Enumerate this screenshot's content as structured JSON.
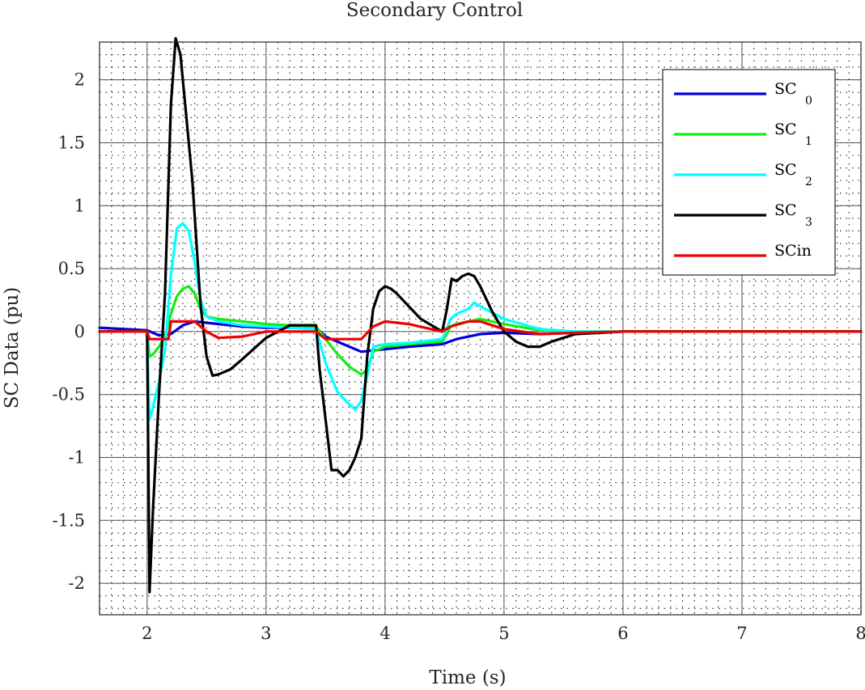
{
  "chart_data": {
    "type": "line",
    "title": "Secondary Control",
    "xlabel": "Time (s)",
    "ylabel": "SC Data (pu)",
    "xlim": [
      1.6,
      8.0
    ],
    "ylim": [
      -2.25,
      2.3
    ],
    "x_ticks": [
      2,
      3,
      4,
      5,
      6,
      7,
      8
    ],
    "x_tick_labels": [
      "2",
      "3",
      "4",
      "5",
      "6",
      "7",
      "8"
    ],
    "y_ticks": [
      -2,
      -1.5,
      -1,
      -0.5,
      0,
      0.5,
      1,
      1.5,
      2
    ],
    "y_tick_labels": [
      "-2",
      "-1.5",
      "-1",
      "-0.5",
      "0",
      "0.5",
      "1",
      "1.5",
      "2"
    ],
    "grid": "major solid, minor dotted",
    "legend_position": "top-right",
    "series": [
      {
        "name": "SC 0",
        "legend_base": "SC",
        "legend_sub": "0",
        "color": "#0000dd",
        "x": [
          1.6,
          2.0,
          2.1,
          2.2,
          2.3,
          2.4,
          2.5,
          2.6,
          2.8,
          3.0,
          3.2,
          3.42,
          3.5,
          3.7,
          3.8,
          4.0,
          4.2,
          4.48,
          4.6,
          4.8,
          5.0,
          5.3,
          5.6,
          6.0,
          7.0,
          8.0
        ],
        "y": [
          0.03,
          0.01,
          -0.03,
          -0.02,
          0.05,
          0.08,
          0.07,
          0.06,
          0.04,
          0.03,
          0.03,
          0.03,
          -0.04,
          -0.12,
          -0.16,
          -0.14,
          -0.12,
          -0.1,
          -0.06,
          -0.02,
          -0.01,
          -0.02,
          -0.01,
          0.0,
          0.0,
          0.0
        ]
      },
      {
        "name": "SC 1",
        "legend_base": "SC",
        "legend_sub": "1",
        "color": "#11ee11",
        "x": [
          1.6,
          2.0,
          2.02,
          2.05,
          2.1,
          2.15,
          2.2,
          2.25,
          2.3,
          2.35,
          2.4,
          2.45,
          2.5,
          2.6,
          2.8,
          3.0,
          3.2,
          3.42,
          3.5,
          3.6,
          3.7,
          3.8,
          3.85,
          3.9,
          4.0,
          4.2,
          4.48,
          4.52,
          4.55,
          4.6,
          4.7,
          4.8,
          5.0,
          5.3,
          5.6,
          6.0,
          7.0,
          8.0
        ],
        "y": [
          0.0,
          0.0,
          -0.2,
          -0.18,
          -0.12,
          -0.04,
          0.14,
          0.28,
          0.34,
          0.36,
          0.3,
          0.18,
          0.12,
          0.1,
          0.08,
          0.06,
          0.05,
          0.04,
          -0.06,
          -0.18,
          -0.28,
          -0.34,
          -0.3,
          -0.16,
          -0.12,
          -0.1,
          -0.08,
          -0.02,
          0.04,
          0.06,
          0.08,
          0.1,
          0.06,
          0.01,
          0.0,
          0.0,
          0.0,
          0.0
        ]
      },
      {
        "name": "SC 2",
        "legend_base": "SC",
        "legend_sub": "2",
        "color": "#00ffff",
        "x": [
          1.6,
          2.0,
          2.02,
          2.05,
          2.1,
          2.15,
          2.2,
          2.25,
          2.3,
          2.35,
          2.4,
          2.45,
          2.5,
          2.6,
          2.8,
          3.0,
          3.2,
          3.42,
          3.5,
          3.6,
          3.7,
          3.75,
          3.8,
          3.85,
          3.9,
          4.0,
          4.2,
          4.48,
          4.52,
          4.55,
          4.6,
          4.7,
          4.75,
          4.8,
          5.0,
          5.3,
          5.6,
          6.0,
          7.0,
          8.0
        ],
        "y": [
          0.0,
          0.0,
          -0.7,
          -0.6,
          -0.4,
          -0.15,
          0.45,
          0.82,
          0.86,
          0.8,
          0.55,
          0.25,
          0.12,
          0.08,
          0.05,
          0.04,
          0.03,
          0.02,
          -0.25,
          -0.48,
          -0.58,
          -0.62,
          -0.55,
          -0.35,
          -0.12,
          -0.1,
          -0.09,
          -0.06,
          0.02,
          0.1,
          0.14,
          0.18,
          0.23,
          0.2,
          0.1,
          0.02,
          0.0,
          0.0,
          0.0,
          0.0
        ]
      },
      {
        "name": "SC 3",
        "legend_base": "SC",
        "legend_sub": "3",
        "color": "#000000",
        "x": [
          1.6,
          2.0,
          2.01,
          2.02,
          2.05,
          2.1,
          2.15,
          2.2,
          2.24,
          2.28,
          2.32,
          2.38,
          2.45,
          2.5,
          2.55,
          2.6,
          2.7,
          2.8,
          3.0,
          3.2,
          3.42,
          3.45,
          3.5,
          3.55,
          3.6,
          3.65,
          3.7,
          3.75,
          3.8,
          3.85,
          3.9,
          3.95,
          4.0,
          4.05,
          4.1,
          4.2,
          4.3,
          4.48,
          4.52,
          4.56,
          4.6,
          4.65,
          4.7,
          4.75,
          4.8,
          4.9,
          5.0,
          5.1,
          5.2,
          5.3,
          5.4,
          5.6,
          6.0,
          7.0,
          8.0
        ],
        "y": [
          0.0,
          0.0,
          -1.0,
          -2.07,
          -1.4,
          -0.5,
          0.3,
          1.8,
          2.33,
          2.2,
          1.8,
          1.2,
          0.2,
          -0.2,
          -0.35,
          -0.34,
          -0.3,
          -0.22,
          -0.05,
          0.05,
          0.05,
          -0.3,
          -0.7,
          -1.1,
          -1.1,
          -1.15,
          -1.1,
          -1.0,
          -0.85,
          -0.2,
          0.18,
          0.32,
          0.36,
          0.34,
          0.3,
          0.2,
          0.1,
          0.0,
          0.18,
          0.42,
          0.4,
          0.44,
          0.46,
          0.44,
          0.36,
          0.16,
          0.0,
          -0.08,
          -0.12,
          -0.12,
          -0.08,
          -0.02,
          0.0,
          0.0,
          0.0
        ]
      },
      {
        "name": "SCin",
        "legend_base": "SCin",
        "legend_sub": "",
        "color": "#ee0000",
        "x": [
          1.6,
          2.0,
          2.02,
          2.18,
          2.2,
          2.4,
          2.5,
          2.6,
          2.8,
          3.0,
          3.2,
          3.42,
          3.5,
          3.7,
          3.8,
          3.9,
          4.0,
          4.2,
          4.48,
          4.55,
          4.7,
          4.8,
          5.0,
          5.3,
          5.6,
          6.0,
          7.0,
          8.0
        ],
        "y": [
          0.0,
          0.0,
          -0.06,
          -0.06,
          0.08,
          0.08,
          0.0,
          -0.05,
          -0.04,
          0.0,
          0.0,
          0.0,
          -0.06,
          -0.06,
          -0.06,
          0.04,
          0.08,
          0.06,
          0.0,
          0.04,
          0.08,
          0.08,
          0.02,
          -0.02,
          -0.01,
          0.0,
          0.0,
          0.0
        ]
      }
    ]
  }
}
